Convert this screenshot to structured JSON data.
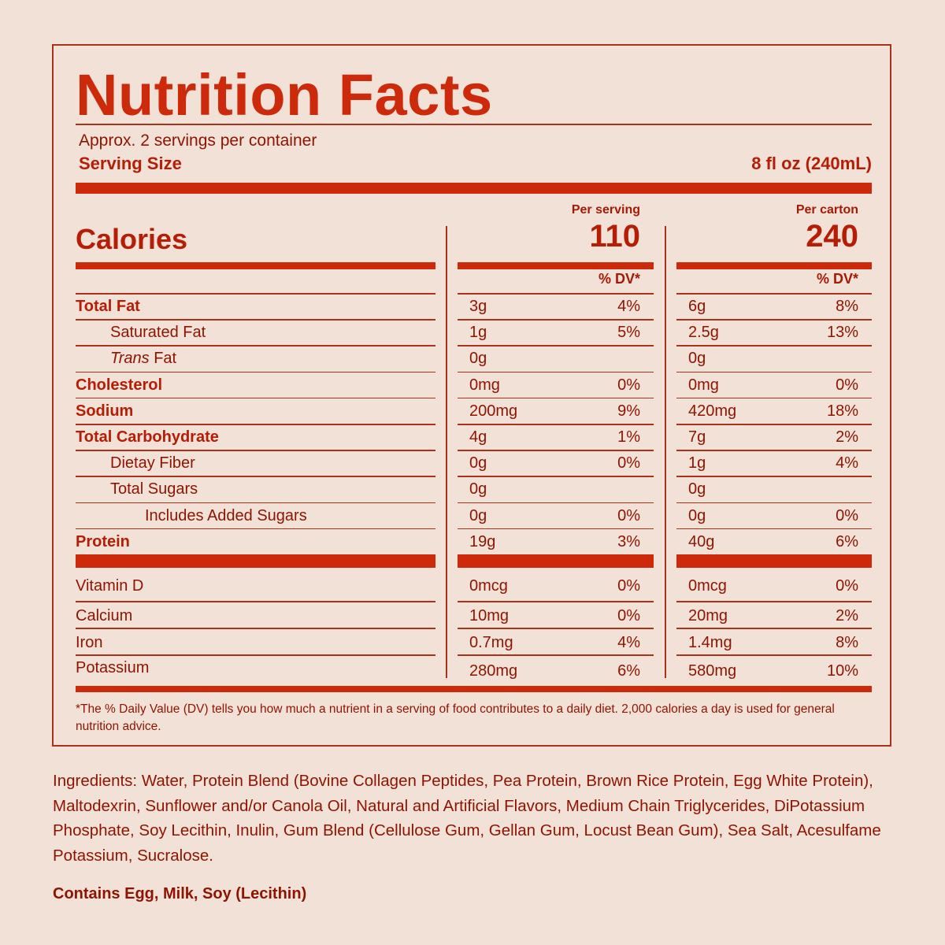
{
  "title": "Nutrition Facts",
  "servings_per_container": "Approx. 2 servings per container",
  "serving_size_label": "Serving Size",
  "serving_size_value": "8 fl oz (240mL)",
  "calories_label": "Calories",
  "columns": {
    "per_serving_label": "Per serving",
    "per_serving_calories": "110",
    "per_carton_label": "Per carton",
    "per_carton_calories": "240",
    "dv_header": "% DV*"
  },
  "nutrients": [
    {
      "label": "Total Fat",
      "bold": true,
      "indent": 0,
      "serving_amount": "3g",
      "serving_dv": "4%",
      "carton_amount": "6g",
      "carton_dv": "8%"
    },
    {
      "label": "Saturated Fat",
      "bold": false,
      "indent": 1,
      "serving_amount": "1g",
      "serving_dv": "5%",
      "carton_amount": "2.5g",
      "carton_dv": "13%"
    },
    {
      "label_italic": "Trans",
      "label": " Fat",
      "bold": false,
      "indent": 1,
      "serving_amount": "0g",
      "serving_dv": "",
      "carton_amount": "0g",
      "carton_dv": ""
    },
    {
      "label": "Cholesterol",
      "bold": true,
      "indent": 0,
      "serving_amount": "0mg",
      "serving_dv": "0%",
      "carton_amount": "0mg",
      "carton_dv": "0%"
    },
    {
      "label": "Sodium",
      "bold": true,
      "indent": 0,
      "serving_amount": "200mg",
      "serving_dv": "9%",
      "carton_amount": "420mg",
      "carton_dv": "18%"
    },
    {
      "label": "Total Carbohydrate",
      "bold": true,
      "indent": 0,
      "serving_amount": "4g",
      "serving_dv": "1%",
      "carton_amount": "7g",
      "carton_dv": "2%"
    },
    {
      "label": "Dietay Fiber",
      "bold": false,
      "indent": 1,
      "serving_amount": "0g",
      "serving_dv": "0%",
      "carton_amount": "1g",
      "carton_dv": "4%"
    },
    {
      "label": "Total Sugars",
      "bold": false,
      "indent": 1,
      "serving_amount": "0g",
      "serving_dv": "",
      "carton_amount": "0g",
      "carton_dv": ""
    },
    {
      "label": "Includes Added Sugars",
      "bold": false,
      "indent": 2,
      "serving_amount": "0g",
      "serving_dv": "0%",
      "carton_amount": "0g",
      "carton_dv": "0%"
    },
    {
      "label": "Protein",
      "bold": true,
      "indent": 0,
      "serving_amount": "19g",
      "serving_dv": "3%",
      "carton_amount": "40g",
      "carton_dv": "6%"
    }
  ],
  "vitamins": [
    {
      "label": "Vitamin D",
      "serving_amount": "0mcg",
      "serving_dv": "0%",
      "carton_amount": "0mcg",
      "carton_dv": "0%"
    },
    {
      "label": "Calcium",
      "serving_amount": "10mg",
      "serving_dv": "0%",
      "carton_amount": "20mg",
      "carton_dv": "2%"
    },
    {
      "label": "Iron",
      "serving_amount": "0.7mg",
      "serving_dv": "4%",
      "carton_amount": "1.4mg",
      "carton_dv": "8%"
    },
    {
      "label": "Potassium",
      "serving_amount": "280mg",
      "serving_dv": "6%",
      "carton_amount": "580mg",
      "carton_dv": "10%"
    }
  ],
  "footnote": "*The % Daily Value (DV) tells you how much a nutrient in a serving of food contributes to a daily diet. 2,000 calories a day is used for general nutrition advice.",
  "ingredients": "Ingredients: Water, Protein Blend (Bovine Collagen Peptides, Pea Protein, Brown Rice Protein, Egg White Protein), Maltodexrin, Sunflower and/or Canola Oil, Natural and Artificial Flavors, Medium Chain Triglycerides, DiPotassium Phosphate, Soy Lecithin, Inulin, Gum Blend (Cellulose Gum, Gellan Gum, Locust Bean Gum), Sea Salt, Acesulfame Potassium, Sucralose.",
  "allergens": "Contains Egg, Milk, Soy (Lecithin)",
  "colors": {
    "background": "#f2e1d7",
    "accent_red": "#cc2a0a",
    "text_dark_red": "#8e1400",
    "border": "#a8321a"
  }
}
